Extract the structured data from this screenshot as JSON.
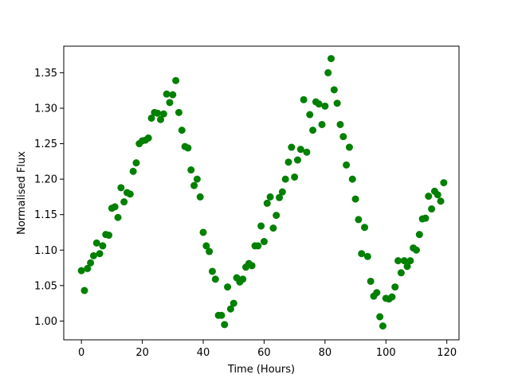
{
  "chart_data": {
    "type": "scatter",
    "title": "",
    "xlabel": "Time (Hours)",
    "ylabel": "Normalised Flux",
    "xlim": [
      -5.8,
      124
    ],
    "ylim": [
      0.9735,
      1.3875
    ],
    "xticks": [
      0,
      20,
      40,
      60,
      80,
      100,
      120
    ],
    "yticks": [
      1.0,
      1.05,
      1.1,
      1.15,
      1.2,
      1.25,
      1.3,
      1.35
    ],
    "xtick_labels": [
      "0",
      "20",
      "40",
      "60",
      "80",
      "100",
      "120"
    ],
    "ytick_labels": [
      "1.00",
      "1.05",
      "1.10",
      "1.15",
      "1.20",
      "1.25",
      "1.30",
      "1.35"
    ],
    "grid": false,
    "legend": "none",
    "marker_color": "#008000",
    "series": [
      {
        "x": [
          0,
          1,
          2,
          3,
          4,
          5,
          6,
          7,
          8,
          9,
          10,
          11,
          12,
          13,
          14,
          15,
          16,
          17,
          18,
          19,
          20,
          21,
          22,
          23,
          24,
          25,
          26,
          27,
          28,
          29,
          30,
          31,
          32,
          33,
          34,
          35,
          36,
          37,
          38,
          39,
          40,
          41,
          42,
          43,
          44,
          45,
          46,
          47,
          48,
          49,
          50,
          51,
          52,
          53,
          54,
          55,
          56,
          57,
          58,
          59,
          60,
          61,
          62,
          63,
          64,
          65,
          66,
          67,
          68,
          69,
          70,
          71,
          72,
          73,
          74,
          75,
          76,
          77,
          78,
          79,
          80,
          81,
          82,
          83,
          84,
          85,
          86,
          87,
          88,
          89,
          90,
          91,
          92,
          93,
          94,
          95,
          96,
          97,
          98,
          99,
          100,
          101,
          102,
          103,
          104,
          105,
          106,
          107,
          108,
          109,
          110,
          111,
          112,
          113,
          114,
          115,
          116,
          117,
          118,
          119
        ],
        "y": [
          1.071,
          1.043,
          1.074,
          1.082,
          1.092,
          1.11,
          1.095,
          1.106,
          1.122,
          1.121,
          1.159,
          1.161,
          1.146,
          1.188,
          1.168,
          1.181,
          1.179,
          1.211,
          1.223,
          1.25,
          1.254,
          1.255,
          1.258,
          1.286,
          1.294,
          1.293,
          1.284,
          1.292,
          1.32,
          1.308,
          1.319,
          1.339,
          1.294,
          1.269,
          1.246,
          1.244,
          1.213,
          1.191,
          1.2,
          1.175,
          1.125,
          1.106,
          1.098,
          1.07,
          1.059,
          1.008,
          1.008,
          0.995,
          1.048,
          1.017,
          1.025,
          1.061,
          1.055,
          1.059,
          1.076,
          1.081,
          1.078,
          1.106,
          1.106,
          1.134,
          1.112,
          1.166,
          1.175,
          1.131,
          1.149,
          1.174,
          1.182,
          1.2,
          1.224,
          1.245,
          1.203,
          1.227,
          1.242,
          1.312,
          1.238,
          1.291,
          1.269,
          1.309,
          1.306,
          1.277,
          1.303,
          1.35,
          1.37,
          1.326,
          1.307,
          1.277,
          1.26,
          1.22,
          1.245,
          1.2,
          1.172,
          1.143,
          1.095,
          1.132,
          1.091,
          1.056,
          1.035,
          1.04,
          1.006,
          0.993,
          1.032,
          1.031,
          1.034,
          1.048,
          1.085,
          1.068,
          1.085,
          1.077,
          1.085,
          1.103,
          1.1,
          1.122,
          1.144,
          1.145,
          1.176,
          1.158,
          1.183,
          1.178,
          1.169,
          1.195
        ]
      }
    ]
  }
}
